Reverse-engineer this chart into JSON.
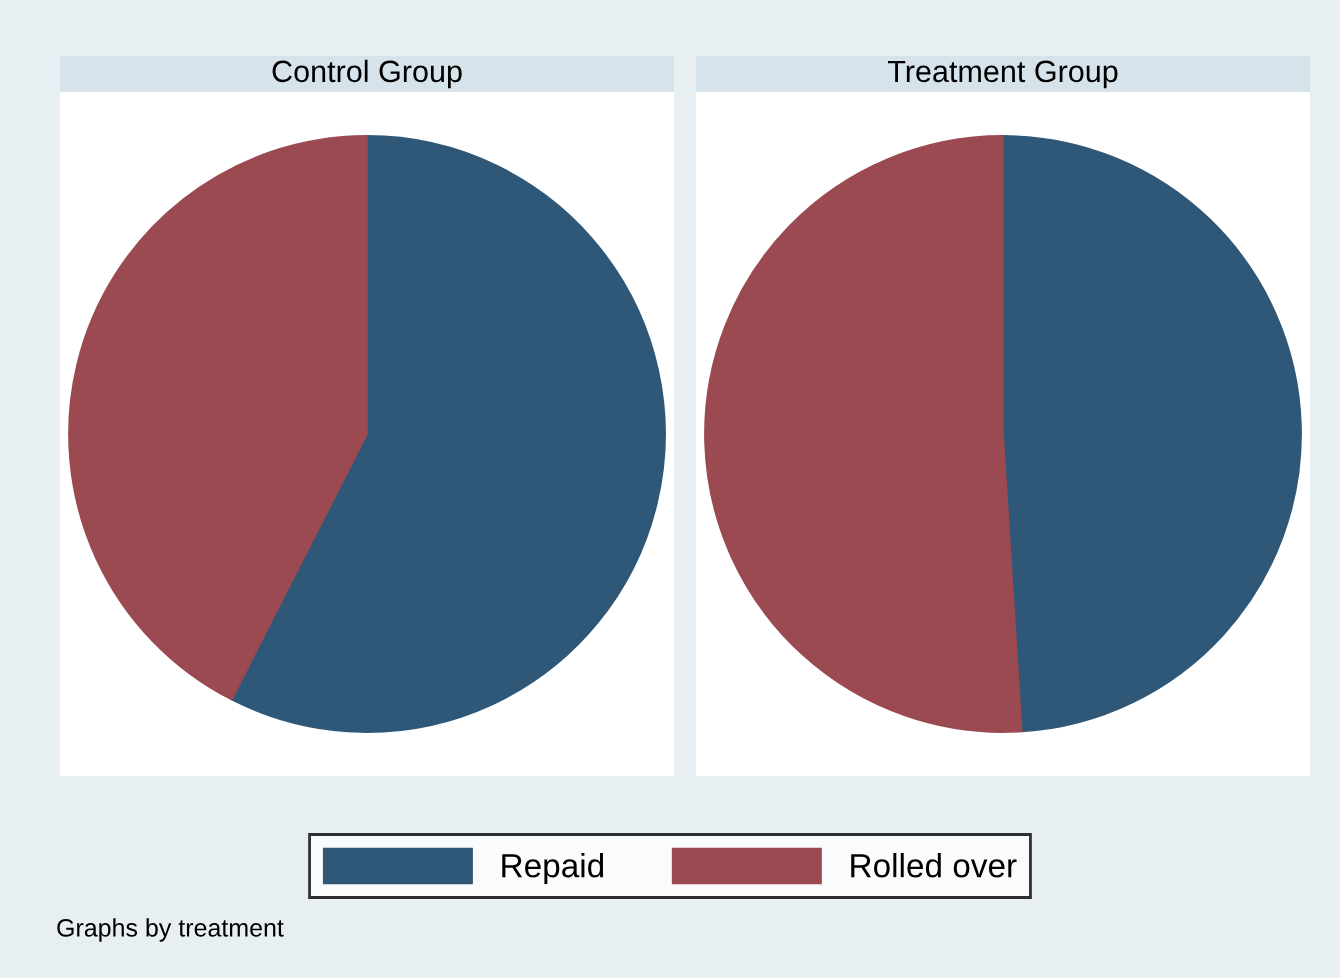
{
  "chart_data": [
    {
      "type": "pie",
      "title": "Control Group",
      "categories": [
        "Repaid",
        "Rolled over"
      ],
      "values": [
        57.5,
        42.5
      ],
      "colors": [
        "#2f5777",
        "#9a4a50"
      ],
      "legend": "bottom",
      "annotations": [
        "Graphs by treatment"
      ]
    },
    {
      "type": "pie",
      "title": "Treatment Group",
      "categories": [
        null,
        null
      ],
      "values": [
        49,
        51
      ],
      "colors": [
        "#2f5777",
        "#9a4a50"
      ]
    }
  ]
}
